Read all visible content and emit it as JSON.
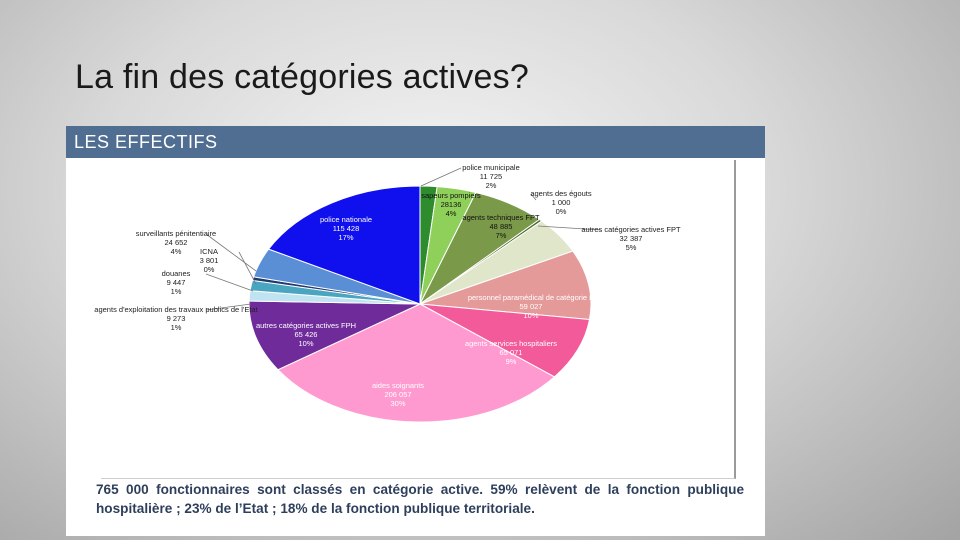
{
  "slide": {
    "title": "La fin des catégories actives?"
  },
  "panel": {
    "header": "LES EFFECTIFS",
    "caption": "765 000 fonctionnaires sont classés en catégorie active. 59% relèvent de la fonction publique hospitalière ; 23% de l’Etat ; 18% de la fonction publique territoriale."
  },
  "chart_data": {
    "type": "pie",
    "title": "",
    "slices": [
      {
        "label": "police municipale",
        "value": "11 725",
        "pct": "2%",
        "share": 1.6,
        "color": "#2e8b2e"
      },
      {
        "label": "sapeurs pompiers",
        "value": "28136",
        "pct": "4%",
        "share": 3.7,
        "color": "#8fd05a"
      },
      {
        "label": "agents techniques FPT",
        "value": "48 885",
        "pct": "7%",
        "share": 7.0,
        "color": "#7a9a4a"
      },
      {
        "label": "agents des égouts",
        "value": "1 000",
        "pct": "0%",
        "share": 0.3,
        "color": "#4a6b2a"
      },
      {
        "label": "autres catégories actives FPT",
        "value": "32 387",
        "pct": "5%",
        "share": 5.0,
        "color": "#dfe6c9"
      },
      {
        "label": "personnel paramédical de catégorie B",
        "value": "59 027",
        "pct": "10%",
        "share": 9.5,
        "color": "#e59a9a"
      },
      {
        "label": "agents services hospitaliers",
        "value": "65 071",
        "pct": "9%",
        "share": 8.5,
        "color": "#f25a9a"
      },
      {
        "label": "aides soignants",
        "value": "206 057",
        "pct": "30%",
        "share": 30.0,
        "color": "#ff9ad0"
      },
      {
        "label": "autres catégories actives FPH",
        "value": "65 426",
        "pct": "10%",
        "share": 9.8,
        "color": "#6f2b9a"
      },
      {
        "label": "agents d'exploitation des travaux publics de l'Etat",
        "value": "9 273",
        "pct": "1%",
        "share": 1.4,
        "color": "#bfe3f0"
      },
      {
        "label": "douanes",
        "value": "9 447",
        "pct": "1%",
        "share": 1.4,
        "color": "#4aa6c0"
      },
      {
        "label": "ICNA",
        "value": "3 801",
        "pct": "0%",
        "share": 0.5,
        "color": "#1f3b6e"
      },
      {
        "label": "surveillants pénitentiaire",
        "value": "24 652",
        "pct": "4%",
        "share": 4.0,
        "color": "#5a8fd6"
      },
      {
        "label": "police nationale",
        "value": "115 428",
        "pct": "17%",
        "share": 17.3,
        "color": "#1010ee"
      }
    ]
  }
}
